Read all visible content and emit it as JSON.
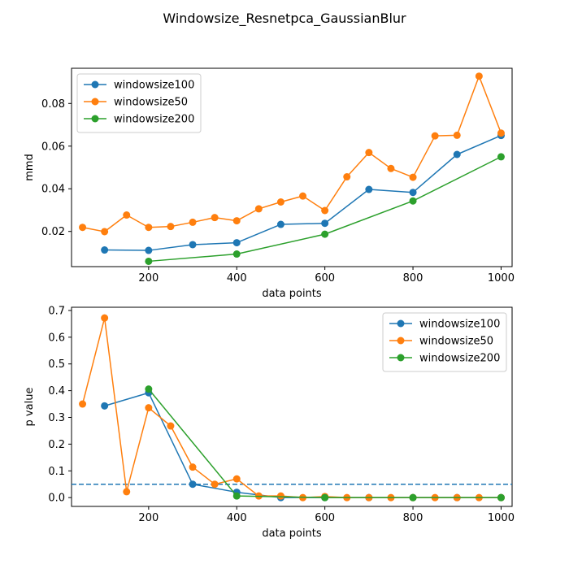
{
  "figure": {
    "title": "Windowsize_Resnetpca_GaussianBlur",
    "colors": {
      "windowsize100": "#1f77b4",
      "windowsize50": "#ff7f0e",
      "windowsize200": "#2ca02c",
      "threshold": "#1f77b4"
    }
  },
  "chart_data": [
    {
      "type": "line",
      "xlabel": "data points",
      "ylabel": "mmd",
      "xlim": [
        25,
        1025
      ],
      "ylim": [
        0.0035,
        0.0965
      ],
      "xticks": [
        200,
        400,
        600,
        800,
        1000
      ],
      "yticks": [
        0.02,
        0.04,
        0.06,
        0.08
      ],
      "ytick_labels": [
        "0.02",
        "0.04",
        "0.06",
        "0.08"
      ],
      "legend_position": "top-left",
      "series": [
        {
          "name": "windowsize100",
          "color": "#1f77b4",
          "x": [
            100,
            200,
            300,
            400,
            500,
            600,
            700,
            800,
            900,
            1000
          ],
          "y": [
            0.0113,
            0.0111,
            0.0138,
            0.0147,
            0.0233,
            0.0238,
            0.0397,
            0.0383,
            0.0561,
            0.065
          ]
        },
        {
          "name": "windowsize50",
          "color": "#ff7f0e",
          "x": [
            50,
            100,
            150,
            200,
            250,
            300,
            350,
            400,
            450,
            500,
            550,
            600,
            650,
            700,
            750,
            800,
            850,
            900,
            950,
            1000
          ],
          "y": [
            0.0219,
            0.0199,
            0.0277,
            0.0219,
            0.0223,
            0.0243,
            0.0265,
            0.025,
            0.0306,
            0.0338,
            0.0366,
            0.0298,
            0.0456,
            0.057,
            0.0495,
            0.0454,
            0.0648,
            0.0651,
            0.0928,
            0.0661
          ]
        },
        {
          "name": "windowsize200",
          "color": "#2ca02c",
          "x": [
            200,
            400,
            600,
            800,
            1000
          ],
          "y": [
            0.006,
            0.0094,
            0.0187,
            0.0343,
            0.055
          ]
        }
      ]
    },
    {
      "type": "line",
      "xlabel": "data points",
      "ylabel": "p value",
      "xlim": [
        25,
        1025
      ],
      "ylim": [
        -0.033,
        0.712
      ],
      "xticks": [
        200,
        400,
        600,
        800,
        1000
      ],
      "yticks": [
        0.0,
        0.1,
        0.2,
        0.3,
        0.4,
        0.5,
        0.6,
        0.7
      ],
      "ytick_labels": [
        "0.0",
        "0.1",
        "0.2",
        "0.3",
        "0.4",
        "0.5",
        "0.6",
        "0.7"
      ],
      "threshold": 0.05,
      "legend_position": "top-right",
      "series": [
        {
          "name": "windowsize100",
          "color": "#1f77b4",
          "x": [
            100,
            200,
            300,
            400,
            500,
            600,
            700,
            800,
            900,
            1000
          ],
          "y": [
            0.343,
            0.392,
            0.05,
            0.02,
            0.0,
            0.0,
            0.0,
            0.0,
            0.0,
            0.0
          ]
        },
        {
          "name": "windowsize50",
          "color": "#ff7f0e",
          "x": [
            50,
            100,
            150,
            200,
            250,
            300,
            350,
            400,
            450,
            500,
            550,
            600,
            650,
            700,
            750,
            800,
            850,
            900,
            950,
            1000
          ],
          "y": [
            0.35,
            0.672,
            0.022,
            0.336,
            0.268,
            0.114,
            0.05,
            0.07,
            0.006,
            0.006,
            0.0,
            0.004,
            0.0,
            0.0,
            0.0,
            0.0,
            0.0,
            0.0,
            0.0,
            0.0
          ]
        },
        {
          "name": "windowsize200",
          "color": "#2ca02c",
          "x": [
            200,
            400,
            600,
            800,
            1000
          ],
          "y": [
            0.406,
            0.006,
            0.0,
            0.0,
            0.0
          ]
        }
      ]
    }
  ]
}
